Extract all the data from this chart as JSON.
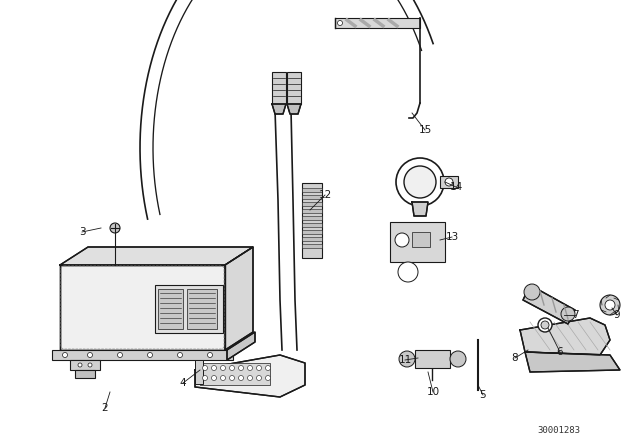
{
  "background_color": "#ffffff",
  "figure_width": 6.4,
  "figure_height": 4.48,
  "dpi": 100,
  "diagram_code": "30001283",
  "line_color": "#1a1a1a",
  "line_width": 1.0,
  "label_fontsize": 7.5,
  "code_fontsize": 6.5
}
